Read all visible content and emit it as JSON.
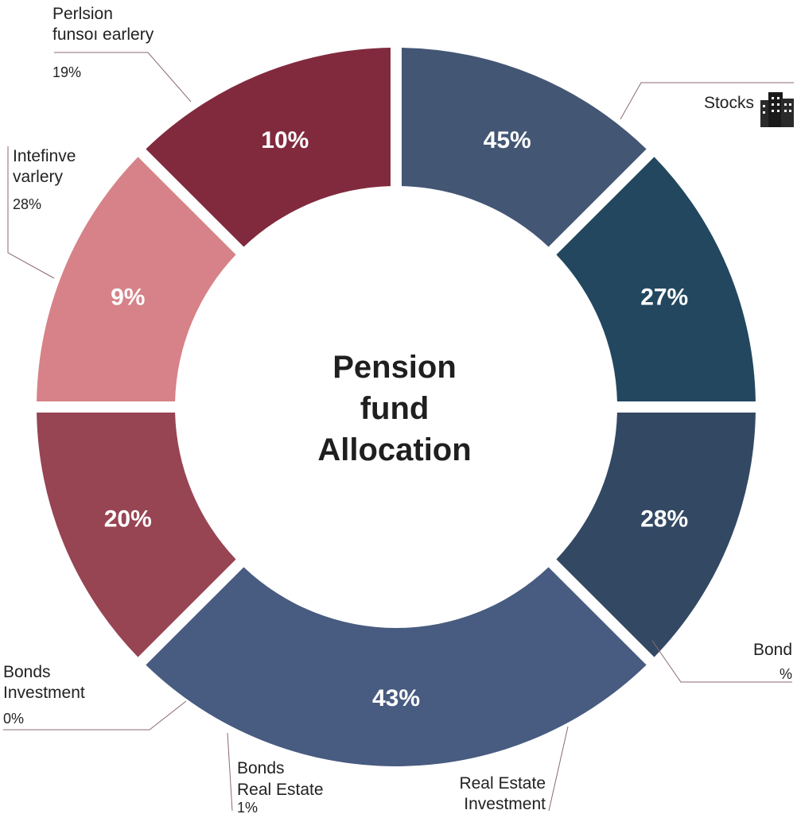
{
  "chart_data": {
    "type": "pie",
    "title": "Pension fund Allocation",
    "title_lines": [
      "Pension",
      "fund",
      "Allocation"
    ],
    "segments": [
      {
        "label": "45%",
        "value": 45,
        "color": "#435674"
      },
      {
        "label": "27%",
        "value": 27,
        "color": "#22475f"
      },
      {
        "label": "28%",
        "value": 28,
        "color": "#334863"
      },
      {
        "label": "43%",
        "value": 43,
        "color": "#485b80"
      },
      {
        "label": "20%",
        "value": 20,
        "color": "#974453"
      },
      {
        "label": "9%",
        "value": 9,
        "color": "#d68288"
      },
      {
        "label": "10%",
        "value": 10,
        "color": "#812a3e"
      }
    ],
    "annotations": [
      {
        "lines": [
          "Perlsion",
          "funsoı earlery"
        ],
        "pct": "19%"
      },
      {
        "lines": [
          "Stocks"
        ],
        "pct": ""
      },
      {
        "lines": [
          "Intefinve",
          "varlery"
        ],
        "pct": "28%"
      },
      {
        "lines": [
          "Bond"
        ],
        "pct": "%"
      },
      {
        "lines": [
          "Bonds",
          "Investment"
        ],
        "pct": "0%"
      },
      {
        "lines": [
          "Bonds",
          "Real Estate"
        ],
        "pct": "1%"
      },
      {
        "lines": [
          "Real Estate",
          "Investment"
        ],
        "pct": ""
      }
    ]
  }
}
